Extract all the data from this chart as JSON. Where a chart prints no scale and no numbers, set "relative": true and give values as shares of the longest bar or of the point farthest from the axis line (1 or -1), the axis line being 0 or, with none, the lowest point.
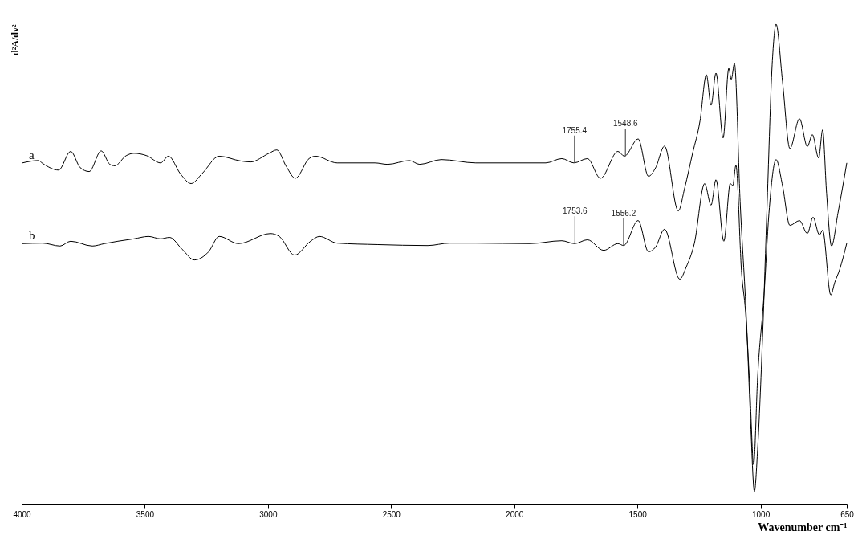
{
  "chart_data": {
    "type": "line",
    "relative": true,
    "ylabel": "d²A/dv²",
    "xlabel": "Wavenumber cm⁻¹",
    "xlim": [
      4000,
      650
    ],
    "xticks": [
      4000,
      3500,
      3000,
      2500,
      2000,
      1500,
      1000,
      650
    ],
    "grid": false,
    "legend": false,
    "annotations": [
      {
        "text": "1755.4",
        "x": 1755.4,
        "y": 0.711
      },
      {
        "text": "1548.6",
        "x": 1548.6,
        "y": 0.725
      },
      {
        "text": "1753.6",
        "x": 1753.6,
        "y": 0.543
      },
      {
        "text": "1556.2",
        "x": 1556.2,
        "y": 0.539
      }
    ],
    "series": [
      {
        "name": "a",
        "color": "#000000",
        "x": [
          3997,
          3932,
          3915,
          3850,
          3801,
          3762,
          3726,
          3677,
          3642,
          3622,
          3576,
          3544,
          3492,
          3436,
          3404,
          3355,
          3312,
          3267,
          3198,
          3110,
          3071,
          2996,
          2964,
          2925,
          2889,
          2833,
          2807,
          2719,
          2566,
          2514,
          2426,
          2384,
          2296,
          2156,
          1872,
          1807,
          1758,
          1703,
          1650,
          1579,
          1553,
          1497,
          1455,
          1426,
          1390,
          1334,
          1308,
          1276,
          1246,
          1220,
          1201,
          1181,
          1152,
          1129,
          1119,
          1106,
          1083,
          1057,
          1041,
          1025,
          1012,
          992,
          973,
          953,
          937,
          911,
          881,
          842,
          810,
          790,
          764,
          748,
          732,
          712,
          686,
          650
        ],
        "values": [
          0.711,
          0.716,
          0.71,
          0.696,
          0.735,
          0.701,
          0.693,
          0.736,
          0.708,
          0.705,
          0.726,
          0.731,
          0.726,
          0.711,
          0.725,
          0.688,
          0.668,
          0.689,
          0.725,
          0.715,
          0.713,
          0.731,
          0.738,
          0.703,
          0.679,
          0.72,
          0.725,
          0.711,
          0.711,
          0.708,
          0.716,
          0.708,
          0.718,
          0.711,
          0.711,
          0.72,
          0.711,
          0.72,
          0.679,
          0.735,
          0.725,
          0.761,
          0.683,
          0.701,
          0.746,
          0.611,
          0.659,
          0.731,
          0.798,
          0.895,
          0.831,
          0.898,
          0.763,
          0.908,
          0.885,
          0.918,
          0.631,
          0.381,
          0.18,
          0.027,
          0.114,
          0.347,
          0.631,
          0.915,
          1,
          0.881,
          0.741,
          0.803,
          0.745,
          0.77,
          0.721,
          0.78,
          0.648,
          0.538,
          0.606,
          0.711
        ]
      },
      {
        "name": "b",
        "color": "#000000",
        "x": [
          3997,
          3915,
          3844,
          3801,
          3713,
          3664,
          3609,
          3544,
          3485,
          3436,
          3400,
          3348,
          3299,
          3241,
          3198,
          3120,
          2990,
          2954,
          2892,
          2827,
          2791,
          2719,
          2556,
          2351,
          2263,
          2156,
          1937,
          1807,
          1755,
          1703,
          1637,
          1579,
          1556,
          1497,
          1455,
          1426,
          1390,
          1328,
          1302,
          1269,
          1227,
          1201,
          1181,
          1149,
          1123,
          1113,
          1100,
          1077,
          1061,
          1044,
          1028,
          1012,
          986,
          966,
          937,
          911,
          881,
          842,
          810,
          787,
          761,
          748,
          715,
          699,
          679,
          650
        ],
        "values": [
          0.543,
          0.544,
          0.538,
          0.548,
          0.538,
          0.543,
          0.548,
          0.553,
          0.558,
          0.553,
          0.556,
          0.531,
          0.509,
          0.526,
          0.558,
          0.543,
          0.564,
          0.558,
          0.519,
          0.548,
          0.558,
          0.544,
          0.541,
          0.539,
          0.544,
          0.544,
          0.543,
          0.549,
          0.543,
          0.551,
          0.529,
          0.543,
          0.539,
          0.591,
          0.526,
          0.536,
          0.573,
          0.469,
          0.494,
          0.543,
          0.668,
          0.623,
          0.676,
          0.548,
          0.668,
          0.664,
          0.706,
          0.482,
          0.401,
          0.247,
          0.083,
          0.264,
          0.436,
          0.606,
          0.718,
          0.664,
          0.581,
          0.591,
          0.564,
          0.598,
          0.561,
          0.571,
          0.436,
          0.462,
          0.489,
          0.544
        ]
      }
    ]
  }
}
